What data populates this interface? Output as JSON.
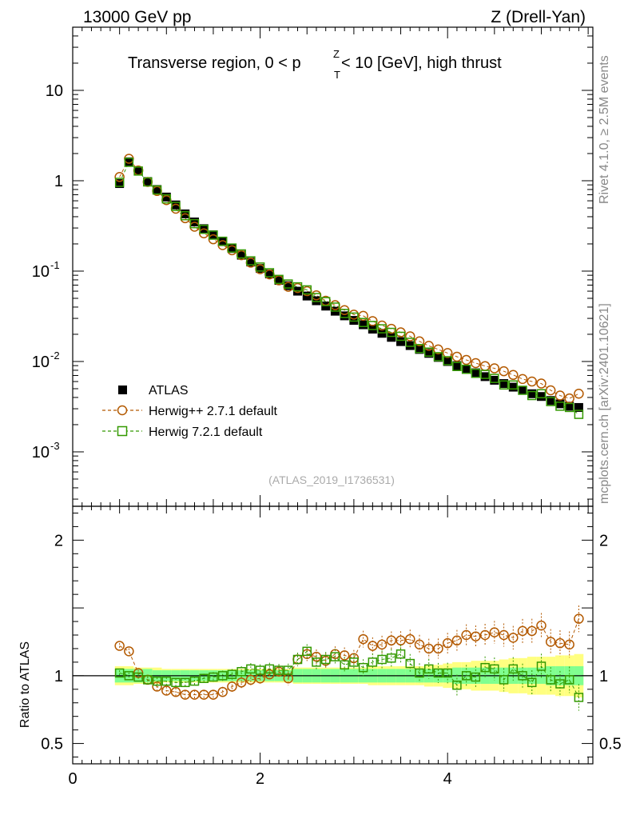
{
  "header": {
    "left": "13000 GeV pp",
    "right": "Z (Drell-Yan)"
  },
  "side_labels": {
    "rivet": "Rivet 4.1.0, ≥ 2.5M events",
    "mcplots": "mcplots.cern.ch [arXiv:2401.10621]"
  },
  "watermark": "(ATLAS_2019_I1736531)",
  "chart_data": {
    "type": "scatter",
    "title": "Transverse region, 0 < p_T^Z < 10 [GeV], high thrust",
    "title_parts": {
      "pre": "Transverse region, 0 < p",
      "sup": "Z",
      "sub": "T",
      "post": " < 10 [GeV], high thrust"
    },
    "xlim": [
      0,
      5.55
    ],
    "x_ticks": [
      "0",
      "2",
      "4"
    ],
    "main": {
      "yscale": "log",
      "ylim": [
        0.00025,
        50
      ],
      "y_ticks": [
        "10^-3",
        "10^-2",
        "10^-1",
        "1",
        "10"
      ]
    },
    "ratio": {
      "ylabel": "Ratio to ATLAS",
      "ylim": [
        0.35,
        2.25
      ],
      "y_ticks": [
        "0.5",
        "1",
        "2"
      ]
    },
    "x": [
      0.5,
      0.6,
      0.7,
      0.8,
      0.9,
      1.0,
      1.1,
      1.2,
      1.3,
      1.4,
      1.5,
      1.6,
      1.7,
      1.8,
      1.9,
      2.0,
      2.1,
      2.2,
      2.3,
      2.4,
      2.5,
      2.6,
      2.7,
      2.8,
      2.9,
      3.0,
      3.1,
      3.2,
      3.3,
      3.4,
      3.5,
      3.6,
      3.7,
      3.8,
      3.9,
      4.0,
      4.1,
      4.2,
      4.3,
      4.4,
      4.5,
      4.6,
      4.7,
      4.8,
      4.9,
      5.0,
      5.1,
      5.2,
      5.3,
      5.4
    ],
    "series": [
      {
        "name": "ATLAS",
        "legend": "ATLAS",
        "color": "#000000",
        "marker": "filled-square",
        "values": [
          0.93,
          1.62,
          1.28,
          0.98,
          0.8,
          0.66,
          0.54,
          0.43,
          0.35,
          0.295,
          0.252,
          0.212,
          0.178,
          0.15,
          0.126,
          0.107,
          0.093,
          0.079,
          0.069,
          0.06,
          0.053,
          0.047,
          0.041,
          0.036,
          0.032,
          0.0285,
          0.0255,
          0.0228,
          0.0205,
          0.0185,
          0.0166,
          0.015,
          0.0136,
          0.0123,
          0.0111,
          0.01,
          0.009,
          0.0082,
          0.0075,
          0.0068,
          0.0062,
          0.0057,
          0.0052,
          0.0048,
          0.0044,
          0.0041,
          0.0037,
          0.0034,
          0.0032,
          0.0031
        ],
        "ratio_band_stat": [
          0.05,
          0.05,
          0.05,
          0.05,
          0.04,
          0.04,
          0.04,
          0.04,
          0.04,
          0.04,
          0.04,
          0.04,
          0.04,
          0.04,
          0.04,
          0.04,
          0.04,
          0.04,
          0.04,
          0.05,
          0.05,
          0.05,
          0.05,
          0.05,
          0.05,
          0.05,
          0.05,
          0.05,
          0.05,
          0.05,
          0.05,
          0.05,
          0.05,
          0.05,
          0.05,
          0.05,
          0.06,
          0.06,
          0.06,
          0.06,
          0.06,
          0.06,
          0.06,
          0.06,
          0.06,
          0.06,
          0.07,
          0.07,
          0.07,
          0.07
        ],
        "ratio_band_total": [
          0.07,
          0.07,
          0.06,
          0.06,
          0.06,
          0.05,
          0.05,
          0.05,
          0.05,
          0.05,
          0.05,
          0.05,
          0.05,
          0.05,
          0.05,
          0.05,
          0.05,
          0.05,
          0.05,
          0.06,
          0.06,
          0.06,
          0.06,
          0.06,
          0.06,
          0.06,
          0.06,
          0.07,
          0.07,
          0.07,
          0.07,
          0.07,
          0.07,
          0.08,
          0.08,
          0.09,
          0.1,
          0.1,
          0.11,
          0.11,
          0.11,
          0.12,
          0.13,
          0.13,
          0.14,
          0.14,
          0.14,
          0.15,
          0.15,
          0.16
        ]
      },
      {
        "name": "Herwig++ 2.7.1 default",
        "legend": "Herwig++ 2.7.1 default",
        "color": "#b35900",
        "marker": "open-circle",
        "values": [
          1.1,
          1.75,
          1.3,
          0.97,
          0.77,
          0.61,
          0.49,
          0.385,
          0.31,
          0.262,
          0.225,
          0.194,
          0.17,
          0.15,
          0.124,
          0.105,
          0.092,
          0.079,
          0.067,
          0.065,
          0.06,
          0.054,
          0.047,
          0.042,
          0.037,
          0.033,
          0.032,
          0.028,
          0.025,
          0.023,
          0.021,
          0.019,
          0.0167,
          0.0149,
          0.0136,
          0.0124,
          0.0113,
          0.0104,
          0.0096,
          0.0089,
          0.0084,
          0.0078,
          0.0071,
          0.0064,
          0.006,
          0.0057,
          0.0048,
          0.0042,
          0.0039,
          0.0044
        ],
        "ratio": [
          1.22,
          1.18,
          1.02,
          0.97,
          0.92,
          0.89,
          0.88,
          0.86,
          0.86,
          0.86,
          0.86,
          0.88,
          0.92,
          0.95,
          0.97,
          0.98,
          1.01,
          1.03,
          0.98,
          1.12,
          1.16,
          1.14,
          1.11,
          1.16,
          1.15,
          1.13,
          1.27,
          1.22,
          1.23,
          1.26,
          1.26,
          1.27,
          1.23,
          1.2,
          1.2,
          1.24,
          1.26,
          1.3,
          1.29,
          1.3,
          1.32,
          1.3,
          1.28,
          1.33,
          1.33,
          1.37,
          1.25,
          1.24,
          1.23,
          1.42
        ]
      },
      {
        "name": "Herwig 7.2.1 default",
        "legend": "Herwig 7.2.1 default",
        "color": "#339900",
        "marker": "open-square",
        "values": [
          0.96,
          1.6,
          1.28,
          0.97,
          0.79,
          0.63,
          0.52,
          0.41,
          0.335,
          0.29,
          0.25,
          0.214,
          0.18,
          0.155,
          0.13,
          0.111,
          0.096,
          0.081,
          0.072,
          0.067,
          0.062,
          0.051,
          0.046,
          0.04,
          0.034,
          0.031,
          0.027,
          0.025,
          0.023,
          0.021,
          0.019,
          0.0163,
          0.0139,
          0.0127,
          0.0113,
          0.0102,
          0.0088,
          0.0082,
          0.0074,
          0.0072,
          0.0065,
          0.0055,
          0.0055,
          0.0048,
          0.0042,
          0.0044,
          0.0036,
          0.0032,
          0.0031,
          0.0026
        ],
        "ratio": [
          1.02,
          1.0,
          0.99,
          0.97,
          0.96,
          0.96,
          0.95,
          0.95,
          0.96,
          0.98,
          0.99,
          1.0,
          1.01,
          1.03,
          1.05,
          1.04,
          1.05,
          1.04,
          1.04,
          1.12,
          1.18,
          1.1,
          1.12,
          1.14,
          1.08,
          1.1,
          1.06,
          1.1,
          1.12,
          1.13,
          1.16,
          1.09,
          1.02,
          1.05,
          1.02,
          1.02,
          0.93,
          1.0,
          0.99,
          1.06,
          1.05,
          0.97,
          1.05,
          1.0,
          0.95,
          1.07,
          0.97,
          0.94,
          0.97,
          0.84
        ]
      }
    ]
  }
}
